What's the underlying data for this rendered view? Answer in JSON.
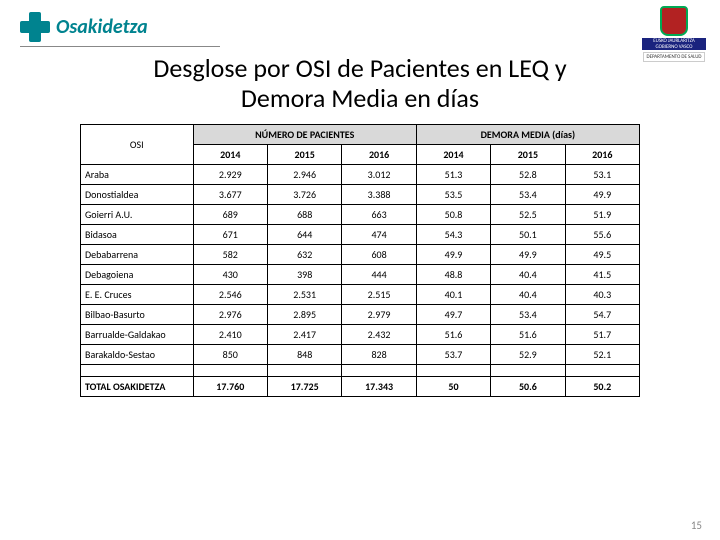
{
  "brand": {
    "name": "Osakidetza"
  },
  "gov": {
    "line1": "EUSKO JAURLARITZA",
    "line2": "GOBIERNO VASCO",
    "dept": "DEPARTAMENTO DE SALUD"
  },
  "title": {
    "line1": "Desglose por OSI de Pacientes en LEQ y",
    "line2": "Demora Media en días"
  },
  "headers": {
    "osi": "OSI",
    "group1": "NÚMERO DE PACIENTES",
    "group2": "DEMORA MEDIA (días)",
    "y2014": "2014",
    "y2015": "2015",
    "y2016": "2016"
  },
  "rows": [
    {
      "name": "Araba",
      "p14": "2.929",
      "p15": "2.946",
      "p16": "3.012",
      "d14": "51.3",
      "d15": "52.8",
      "d16": "53.1"
    },
    {
      "name": "Donostialdea",
      "p14": "3.677",
      "p15": "3.726",
      "p16": "3.388",
      "d14": "53.5",
      "d15": "53.4",
      "d16": "49.9"
    },
    {
      "name": "Goierri A.U.",
      "p14": "689",
      "p15": "688",
      "p16": "663",
      "d14": "50.8",
      "d15": "52.5",
      "d16": "51.9"
    },
    {
      "name": "Bidasoa",
      "p14": "671",
      "p15": "644",
      "p16": "474",
      "d14": "54.3",
      "d15": "50.1",
      "d16": "55.6"
    },
    {
      "name": "Debabarrena",
      "p14": "582",
      "p15": "632",
      "p16": "608",
      "d14": "49.9",
      "d15": "49.9",
      "d16": "49.5"
    },
    {
      "name": "Debagoiena",
      "p14": "430",
      "p15": "398",
      "p16": "444",
      "d14": "48.8",
      "d15": "40.4",
      "d16": "41.5"
    },
    {
      "name": "E. E. Cruces",
      "p14": "2.546",
      "p15": "2.531",
      "p16": "2.515",
      "d14": "40.1",
      "d15": "40.4",
      "d16": "40.3"
    },
    {
      "name": "Bilbao-Basurto",
      "p14": "2.976",
      "p15": "2.895",
      "p16": "2.979",
      "d14": "49.7",
      "d15": "53.4",
      "d16": "54.7"
    },
    {
      "name": "Barrualde-Galdakao",
      "p14": "2.410",
      "p15": "2.417",
      "p16": "2.432",
      "d14": "51.6",
      "d15": "51.6",
      "d16": "51.7"
    },
    {
      "name": "Barakaldo-Sestao",
      "p14": "850",
      "p15": "848",
      "p16": "828",
      "d14": "53.7",
      "d15": "52.9",
      "d16": "52.1"
    }
  ],
  "total": {
    "name": "TOTAL OSAKIDETZA",
    "p14": "17.760",
    "p15": "17.725",
    "p16": "17.343",
    "d14": "50",
    "d15": "50.6",
    "d16": "50.2"
  },
  "page": "15"
}
